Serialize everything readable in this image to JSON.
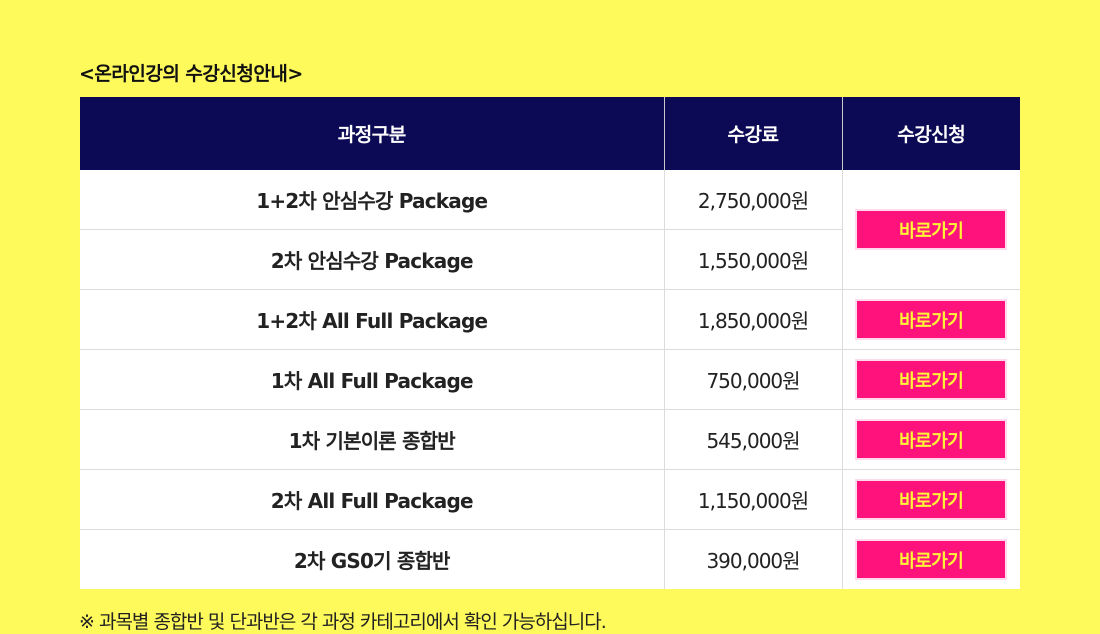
{
  "heading": "<온라인강의 수강신청안내>",
  "table": {
    "headers": {
      "course": "과정구분",
      "fee": "수강료",
      "apply": "수강신청"
    },
    "button_label": "바로가기",
    "rows": [
      {
        "course": "1+2차 안심수강 Package",
        "fee": "2,750,000원"
      },
      {
        "course": "2차 안심수강 Package",
        "fee": "1,550,000원"
      },
      {
        "course": "1+2차 All Full Package",
        "fee": "1,850,000원"
      },
      {
        "course": "1차 All Full Package",
        "fee": "750,000원"
      },
      {
        "course": "1차 기본이론 종합반",
        "fee": "545,000원"
      },
      {
        "course": "2차 All Full Package",
        "fee": "1,150,000원"
      },
      {
        "course": "2차 GS0기 종합반",
        "fee": "390,000원"
      }
    ]
  },
  "note": "※ 과목별 종합반 및 단과반은 각 과정 카테고리에서 확인 가능하십니다.",
  "colors": {
    "background": "#fffa5c",
    "header_bg": "#0c0a54",
    "button_bg": "#ff127c",
    "button_text": "#fff436"
  }
}
